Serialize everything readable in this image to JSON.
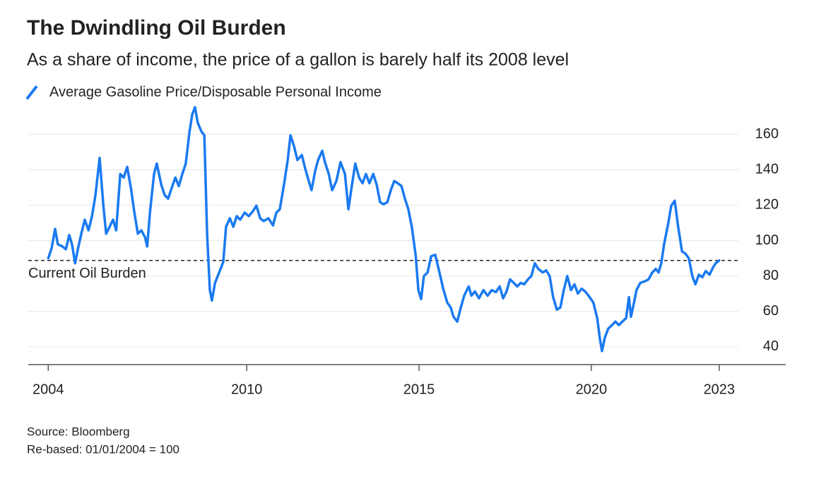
{
  "chart_data": {
    "type": "line",
    "title": "The Dwindling Oil Burden",
    "subtitle": "As a share of income, the price of a gallon is barely half its 2008 level",
    "source": "Source: Bloomberg",
    "note": "Re-based: 01/01/2004 = 100",
    "reference_line": {
      "label": "Current Oil Burden",
      "value": 88.8
    },
    "xlim": [
      2003.66,
      2025.6
    ],
    "xticks": [
      {
        "value": 2004.24,
        "label": "2004"
      },
      2010,
      2015,
      2020,
      {
        "value": 2023.71,
        "label": "2023"
      }
    ],
    "ylim": [
      30,
      176
    ],
    "yticks": [
      40,
      60,
      80,
      100,
      120,
      140,
      160
    ],
    "grid": true,
    "x": [
      2004.24,
      2004.34,
      2004.44,
      2004.52,
      2004.65,
      2004.75,
      2004.85,
      2004.93,
      2005.02,
      2005.1,
      2005.2,
      2005.3,
      2005.41,
      2005.51,
      2005.61,
      2005.73,
      2005.84,
      2005.92,
      2006.02,
      2006.12,
      2006.21,
      2006.33,
      2006.43,
      2006.53,
      2006.64,
      2006.74,
      2006.84,
      2006.94,
      2007.05,
      2007.11,
      2007.19,
      2007.31,
      2007.39,
      2007.52,
      2007.62,
      2007.72,
      2007.82,
      2007.93,
      2008.03,
      2008.13,
      2008.23,
      2008.34,
      2008.42,
      2008.5,
      2008.58,
      2008.69,
      2008.77,
      2008.85,
      2008.93,
      2008.99,
      2009.08,
      2009.2,
      2009.32,
      2009.4,
      2009.51,
      2009.61,
      2009.71,
      2009.81,
      2009.94,
      2010.06,
      2010.18,
      2010.28,
      2010.39,
      2010.49,
      2010.63,
      2010.76,
      2010.86,
      2010.96,
      2011.08,
      2011.19,
      2011.27,
      2011.37,
      2011.47,
      2011.6,
      2011.7,
      2011.8,
      2011.88,
      2011.99,
      2012.07,
      2012.19,
      2012.27,
      2012.38,
      2012.48,
      2012.6,
      2012.72,
      2012.85,
      2012.95,
      2013.05,
      2013.15,
      2013.26,
      2013.36,
      2013.46,
      2013.56,
      2013.67,
      2013.77,
      2013.87,
      2013.97,
      2014.08,
      2014.18,
      2014.28,
      2014.38,
      2014.49,
      2014.59,
      2014.69,
      2014.79,
      2014.9,
      2014.98,
      2015.06,
      2015.14,
      2015.25,
      2015.35,
      2015.47,
      2015.57,
      2015.7,
      2015.82,
      2015.92,
      2016.0,
      2016.11,
      2016.21,
      2016.31,
      2016.44,
      2016.52,
      2016.62,
      2016.74,
      2016.87,
      2016.99,
      2017.11,
      2017.23,
      2017.34,
      2017.44,
      2017.54,
      2017.64,
      2017.75,
      2017.85,
      2017.95,
      2018.05,
      2018.16,
      2018.26,
      2018.36,
      2018.46,
      2018.59,
      2018.69,
      2018.79,
      2018.89,
      2019.0,
      2019.1,
      2019.2,
      2019.3,
      2019.41,
      2019.51,
      2019.61,
      2019.72,
      2019.82,
      2019.92,
      2020.06,
      2020.17,
      2020.25,
      2020.31,
      2020.39,
      2020.49,
      2020.6,
      2020.7,
      2020.8,
      2020.9,
      2021.01,
      2021.09,
      2021.15,
      2021.23,
      2021.31,
      2021.42,
      2021.54,
      2021.66,
      2021.77,
      2021.87,
      2021.95,
      2022.03,
      2022.11,
      2022.22,
      2022.32,
      2022.42,
      2022.52,
      2022.63,
      2022.73,
      2022.83,
      2022.93,
      2023.02,
      2023.12,
      2023.22,
      2023.32,
      2023.43,
      2023.53,
      2023.61,
      2023.71
    ],
    "series": [
      {
        "name": "Average Gasoline Price/Disposable Personal Income",
        "color": "#1a7af0",
        "values": [
          90,
          95.9,
          106.6,
          97.9,
          96.7,
          95.1,
          103.1,
          97.9,
          87.2,
          95.1,
          103.9,
          111.8,
          105.8,
          113.8,
          125.7,
          146.7,
          119.7,
          103.9,
          107.8,
          111.8,
          105.8,
          137.6,
          135.6,
          141.6,
          129.6,
          115.8,
          103.9,
          105.8,
          101.9,
          96.7,
          115.8,
          137.6,
          143.5,
          131.6,
          125.7,
          123.7,
          129.6,
          135.6,
          130.8,
          137.6,
          143.5,
          161.4,
          171.3,
          175.3,
          166.5,
          161.4,
          159.4,
          103.9,
          72.1,
          66.2,
          76.1,
          82,
          88,
          107.8,
          112.6,
          107.8,
          113.8,
          111.8,
          115.8,
          113.8,
          116.6,
          119.7,
          112.6,
          111,
          112.6,
          108.6,
          115.8,
          117.7,
          131.6,
          145.5,
          159.4,
          153.5,
          145.5,
          148.3,
          140.4,
          133.6,
          128.5,
          139.6,
          145.5,
          150.7,
          144.3,
          137.6,
          128.5,
          133.6,
          144.3,
          137.6,
          117.7,
          130.8,
          143.5,
          135.6,
          132.4,
          137.6,
          132.4,
          137.6,
          131.6,
          121.7,
          120.5,
          121.7,
          128.5,
          133.6,
          132.4,
          130.8,
          123.7,
          117.7,
          107.8,
          92,
          72.1,
          67,
          80,
          82,
          91.2,
          92,
          84,
          72.9,
          65,
          62.2,
          57,
          54.3,
          62.2,
          68.9,
          74.1,
          68.9,
          71.3,
          67.4,
          72.1,
          68.9,
          72.1,
          70.9,
          74.1,
          67.4,
          71.3,
          78.1,
          76.1,
          74.1,
          76.1,
          75.3,
          78.1,
          80,
          87.2,
          84,
          82,
          83.2,
          80,
          68.1,
          61,
          62.2,
          72.1,
          80,
          72.1,
          75.3,
          70.1,
          72.9,
          71.3,
          68.9,
          65,
          56.2,
          44.3,
          37.6,
          45.1,
          50.3,
          52.3,
          54.3,
          52.3,
          54.3,
          56.2,
          68.1,
          57,
          64.2,
          72.1,
          76.1,
          76.9,
          78.1,
          82,
          84,
          82,
          87.2,
          97.9,
          108.6,
          119.7,
          122.5,
          107.8,
          93.9,
          92.7,
          90,
          80,
          75.3,
          80.8,
          79.3,
          82.8,
          80.8,
          84.8,
          87.2,
          88.8
        ]
      }
    ]
  }
}
